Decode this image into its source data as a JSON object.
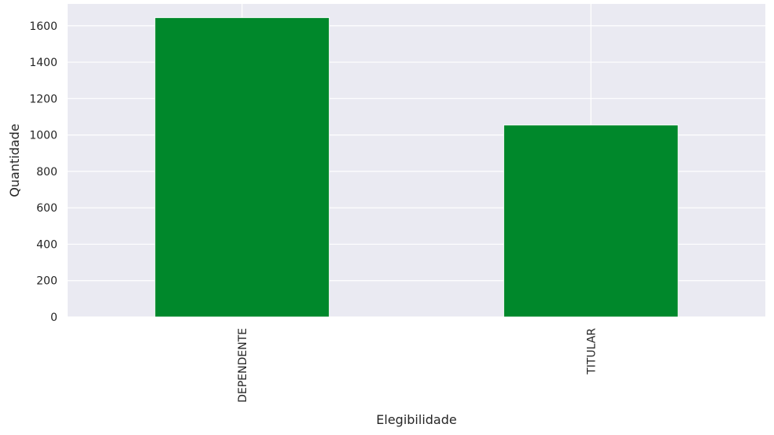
{
  "chart_data": {
    "type": "bar",
    "categories": [
      "DEPENDENTE",
      "TITULAR"
    ],
    "values": [
      1645,
      1055
    ],
    "title": "",
    "xlabel": "Elegibilidade",
    "ylabel": "Quantidade",
    "ylim": [
      0,
      1720
    ],
    "yticks": [
      0,
      200,
      400,
      600,
      800,
      1000,
      1200,
      1400,
      1600
    ],
    "grid": true,
    "bar_color": "#00882b",
    "background_color": "#eaeaf2",
    "grid_color": "#ffffff"
  }
}
